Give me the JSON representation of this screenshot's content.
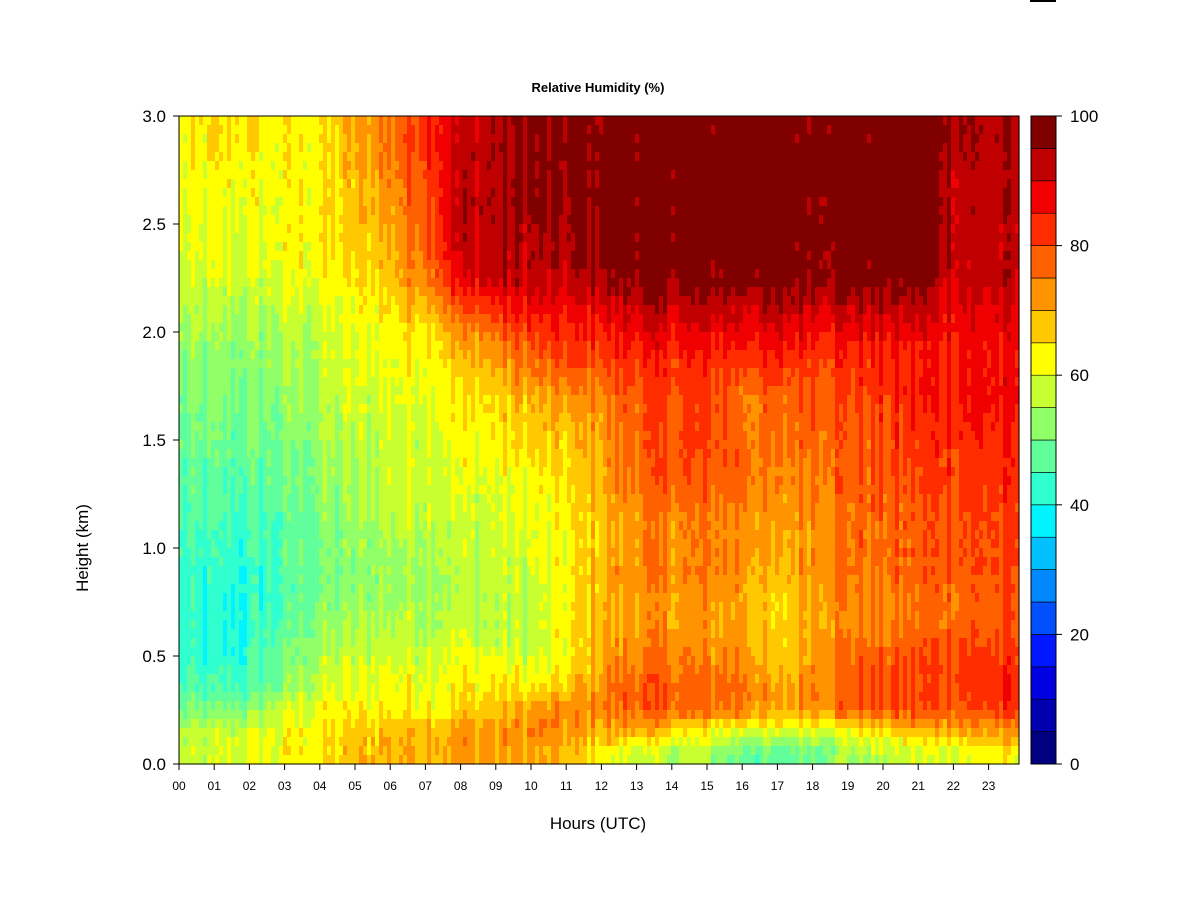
{
  "chart_data": {
    "type": "heatmap",
    "title": "Relative Humidity (%)",
    "xlabel": "Hours (UTC)",
    "ylabel": "Height (km)",
    "xlim": [
      0,
      23.9
    ],
    "ylim": [
      0,
      3.0
    ],
    "x_ticks": [
      "00",
      "01",
      "02",
      "03",
      "04",
      "05",
      "06",
      "07",
      "08",
      "09",
      "10",
      "11",
      "12",
      "13",
      "14",
      "15",
      "16",
      "17",
      "18",
      "19",
      "20",
      "21",
      "22",
      "23"
    ],
    "y_ticks": [
      "0.0",
      "0.5",
      "1.0",
      "1.5",
      "2.0",
      "2.5",
      "3.0"
    ],
    "colorbar": {
      "range": [
        0,
        100
      ],
      "levels": 20,
      "ticks": [
        "0",
        "20",
        "40",
        "60",
        "80",
        "100"
      ],
      "colors": [
        "#000080",
        "#0000b0",
        "#0000e0",
        "#0018ff",
        "#0050ff",
        "#0088ff",
        "#00c0ff",
        "#00f4ff",
        "#30ffd0",
        "#60ff9c",
        "#90ff68",
        "#c8ff30",
        "#ffff00",
        "#ffc800",
        "#ff9400",
        "#ff6000",
        "#ff2c00",
        "#f00000",
        "#c00000",
        "#800000"
      ]
    },
    "height_km": [
      0.05,
      0.15,
      0.25,
      0.35,
      0.45,
      0.55,
      0.65,
      0.75,
      0.9,
      1.1,
      1.3,
      1.5,
      1.7,
      1.9,
      2.05,
      2.15,
      2.25,
      2.45,
      2.7,
      2.9
    ],
    "hours": [
      0,
      1,
      2,
      3,
      4,
      5,
      6,
      7,
      8,
      9,
      10,
      11,
      12,
      13,
      14,
      15,
      16,
      17,
      18,
      19,
      20,
      21,
      22,
      23,
      23.9
    ],
    "rh_percent": [
      [
        56,
        58,
        60,
        62,
        64,
        68,
        70,
        70,
        72,
        72,
        70,
        68,
        64,
        58,
        56,
        54,
        50,
        46,
        50,
        54,
        56,
        58,
        60,
        62,
        62
      ],
      [
        55,
        57,
        58,
        62,
        64,
        66,
        70,
        70,
        72,
        72,
        74,
        72,
        70,
        70,
        66,
        62,
        60,
        58,
        60,
        62,
        66,
        68,
        70,
        72,
        72
      ],
      [
        50,
        50,
        52,
        58,
        62,
        62,
        64,
        64,
        66,
        68,
        70,
        74,
        74,
        78,
        78,
        76,
        76,
        70,
        74,
        78,
        78,
        80,
        80,
        80,
        80
      ],
      [
        46,
        44,
        46,
        52,
        58,
        60,
        62,
        62,
        64,
        64,
        64,
        68,
        74,
        78,
        78,
        76,
        78,
        70,
        76,
        78,
        80,
        80,
        82,
        84,
        84
      ],
      [
        44,
        42,
        44,
        50,
        56,
        58,
        60,
        60,
        62,
        62,
        60,
        62,
        70,
        76,
        76,
        74,
        76,
        66,
        74,
        78,
        78,
        80,
        82,
        82,
        82
      ],
      [
        42,
        40,
        42,
        48,
        54,
        56,
        58,
        58,
        60,
        58,
        56,
        62,
        70,
        74,
        74,
        72,
        74,
        64,
        72,
        76,
        76,
        78,
        80,
        80,
        80
      ],
      [
        42,
        40,
        42,
        46,
        52,
        54,
        56,
        56,
        58,
        56,
        56,
        62,
        70,
        72,
        72,
        72,
        72,
        64,
        72,
        74,
        74,
        76,
        78,
        78,
        78
      ],
      [
        42,
        40,
        42,
        46,
        50,
        52,
        54,
        56,
        56,
        56,
        56,
        62,
        70,
        72,
        72,
        72,
        72,
        64,
        72,
        74,
        74,
        76,
        78,
        78,
        78
      ],
      [
        42,
        42,
        42,
        46,
        50,
        52,
        54,
        56,
        56,
        58,
        58,
        62,
        70,
        74,
        74,
        74,
        74,
        68,
        74,
        76,
        76,
        78,
        80,
        80,
        80
      ],
      [
        44,
        44,
        44,
        46,
        50,
        52,
        56,
        58,
        58,
        58,
        60,
        62,
        68,
        74,
        74,
        74,
        74,
        70,
        74,
        76,
        76,
        78,
        80,
        80,
        80
      ],
      [
        46,
        46,
        46,
        48,
        52,
        54,
        58,
        60,
        60,
        60,
        62,
        64,
        70,
        76,
        78,
        78,
        78,
        72,
        76,
        78,
        78,
        80,
        82,
        82,
        82
      ],
      [
        48,
        48,
        48,
        50,
        54,
        56,
        58,
        60,
        62,
        64,
        66,
        66,
        72,
        78,
        80,
        80,
        78,
        74,
        78,
        78,
        80,
        82,
        84,
        84,
        84
      ],
      [
        50,
        50,
        50,
        52,
        56,
        58,
        60,
        62,
        64,
        66,
        70,
        72,
        74,
        80,
        80,
        80,
        76,
        76,
        80,
        80,
        82,
        84,
        86,
        86,
        86
      ],
      [
        52,
        52,
        52,
        54,
        56,
        60,
        62,
        64,
        68,
        72,
        78,
        80,
        82,
        84,
        84,
        84,
        84,
        84,
        84,
        84,
        84,
        84,
        86,
        86,
        86
      ],
      [
        54,
        54,
        54,
        56,
        58,
        60,
        64,
        68,
        74,
        80,
        84,
        84,
        86,
        90,
        90,
        90,
        90,
        90,
        90,
        90,
        90,
        90,
        88,
        88,
        88
      ],
      [
        56,
        56,
        56,
        58,
        60,
        62,
        66,
        72,
        82,
        86,
        88,
        88,
        92,
        94,
        94,
        94,
        94,
        94,
        94,
        94,
        94,
        94,
        90,
        90,
        90
      ],
      [
        58,
        58,
        58,
        60,
        62,
        64,
        68,
        76,
        88,
        92,
        92,
        92,
        96,
        98,
        98,
        98,
        98,
        98,
        98,
        98,
        98,
        98,
        92,
        92,
        92
      ],
      [
        60,
        60,
        60,
        62,
        64,
        66,
        70,
        80,
        92,
        94,
        94,
        94,
        98,
        99,
        99,
        99,
        99,
        99,
        99,
        99,
        99,
        99,
        94,
        92,
        92
      ],
      [
        60,
        62,
        62,
        62,
        64,
        68,
        74,
        82,
        92,
        94,
        96,
        96,
        98,
        99,
        99,
        99,
        99,
        99,
        99,
        99,
        99,
        99,
        94,
        92,
        92
      ],
      [
        62,
        64,
        64,
        62,
        64,
        70,
        76,
        84,
        92,
        94,
        96,
        96,
        98,
        99,
        99,
        99,
        99,
        99,
        99,
        99,
        99,
        99,
        96,
        94,
        94
      ]
    ]
  }
}
